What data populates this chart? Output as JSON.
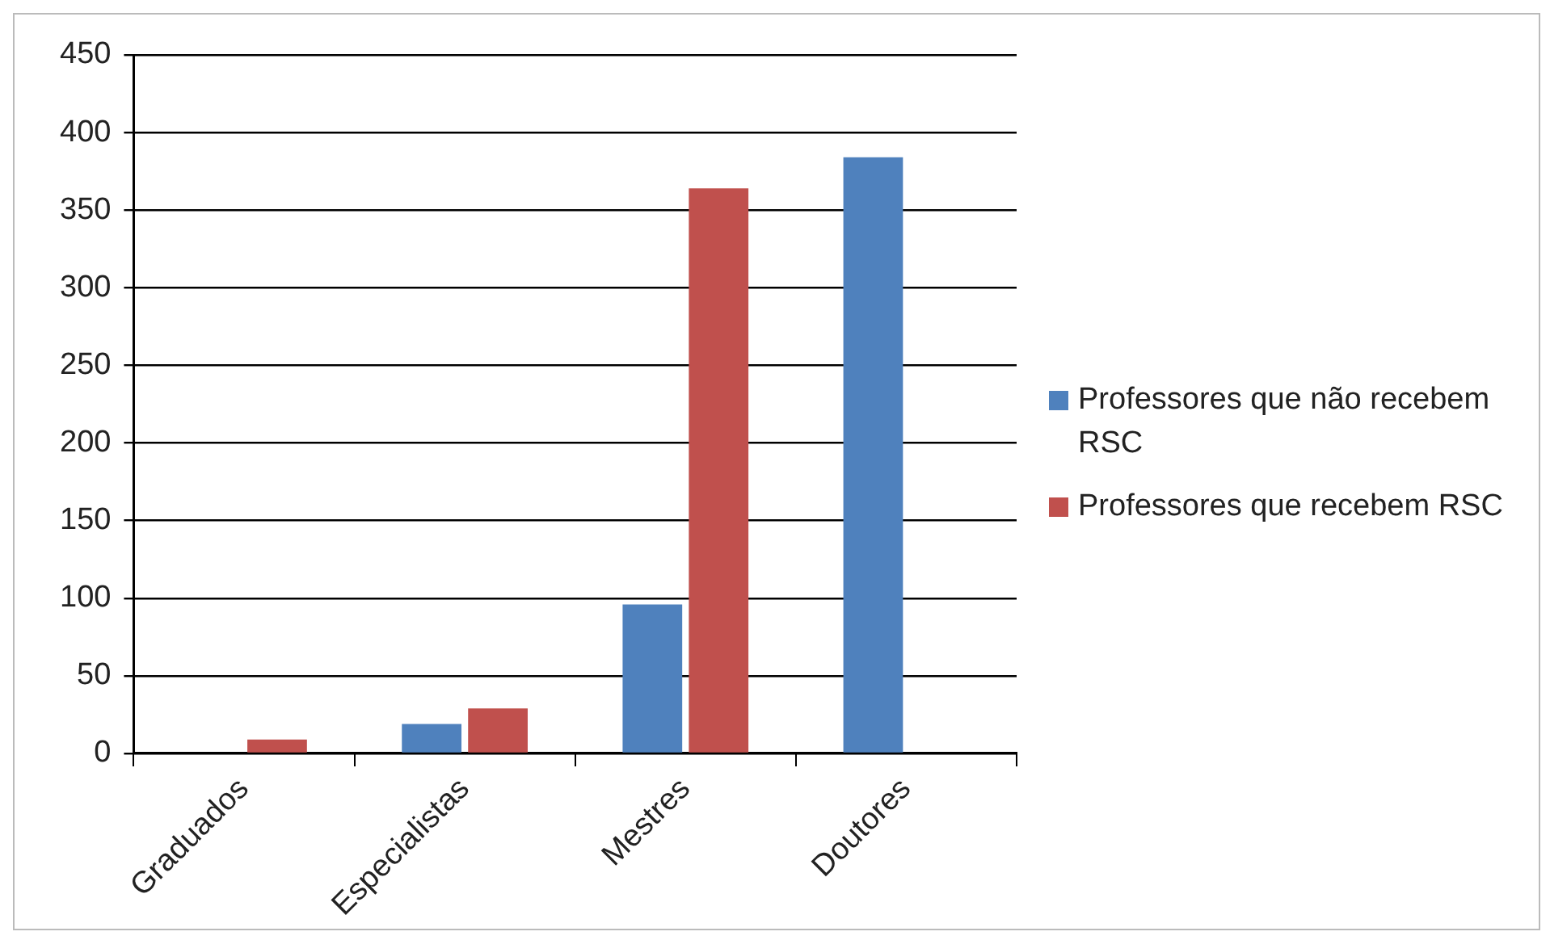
{
  "chart_data": {
    "type": "bar",
    "categories": [
      "Graduados",
      "Especialistas",
      "Mestres",
      "Doutores"
    ],
    "series": [
      {
        "name": "Professores que não recebem RSC",
        "color": "#4f81bd",
        "values": [
          0,
          19,
          96,
          384
        ]
      },
      {
        "name": "Professores que recebem RSC",
        "color": "#c0504d",
        "values": [
          9,
          29,
          364,
          0
        ]
      }
    ],
    "ylim": [
      0,
      450
    ],
    "yticks": [
      0,
      50,
      100,
      150,
      200,
      250,
      300,
      350,
      400,
      450
    ],
    "grid": "y",
    "legend": "right"
  }
}
